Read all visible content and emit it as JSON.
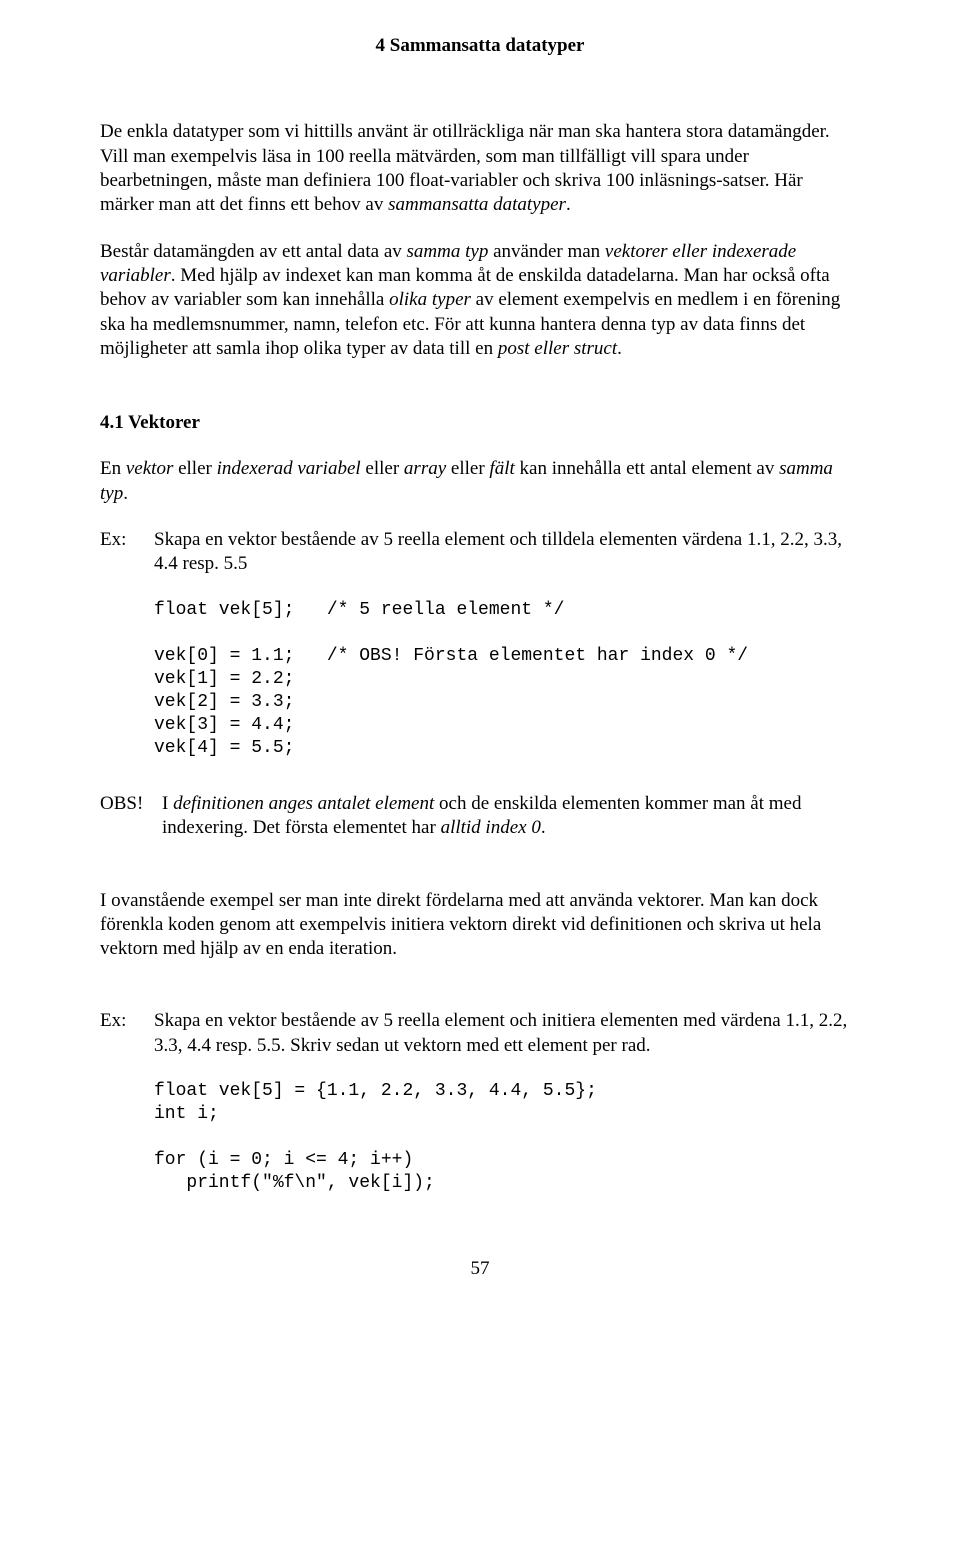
{
  "chapter_title": "4 Sammansatta datatyper",
  "para1_a": "De enkla datatyper som vi hittills använt är otillräckliga när man ska hantera stora datamängder. Vill man exempelvis läsa in 100 reella mätvärden, som man tillfälligt vill spara under bearbetningen, måste man definiera 100 float-variabler och skriva 100 inläsnings-satser. Här märker man att det finns ett behov av ",
  "para1_b_italic": "sammansatta datatyper",
  "para1_c": ".",
  "para2_a": "Består datamängden av ett antal data av ",
  "para2_b_italic": "samma typ",
  "para2_c": " använder man ",
  "para2_d_italic": "vektorer eller indexerade variabler",
  "para2_e": ". Med hjälp av indexet kan man komma åt de enskilda datadelarna. Man har också ofta behov av variabler som kan innehålla ",
  "para2_f_italic": "olika typer",
  "para2_g": " av element exempelvis en medlem i en förening ska ha medlemsnummer, namn, telefon etc. För att kunna hantera denna typ av data finns det möjligheter att samla ihop olika typer av data till en ",
  "para2_h_italic": "post eller struct",
  "para2_i": ".",
  "section_4_1": "4.1 Vektorer",
  "para3_a": "En ",
  "para3_b_italic": "vektor",
  "para3_c": " eller ",
  "para3_d_italic": "indexerad variabel",
  "para3_e": " eller ",
  "para3_f_italic": "array",
  "para3_g": " eller ",
  "para3_h_italic": "fält",
  "para3_i": " kan innehålla ett antal element av ",
  "para3_j_italic": "samma typ",
  "para3_k": ".",
  "ex_label": "Ex:",
  "ex1_body": "Skapa en vektor bestående av 5 reella element och tilldela elementen värdena 1.1, 2.2, 3.3, 4.4 resp. 5.5",
  "code1": "float vek[5];   /* 5 reella element */\n\nvek[0] = 1.1;   /* OBS! Första elementet har index 0 */\nvek[1] = 2.2;\nvek[2] = 3.3;\nvek[3] = 4.4;\nvek[4] = 5.5;",
  "obs_label": "OBS!",
  "obs_a": "I ",
  "obs_b_italic": "definitionen anges antalet element",
  "obs_c": " och de enskilda elementen kommer man åt med indexering. Det första elementet har ",
  "obs_d_italic": "alltid index 0",
  "obs_e": ".",
  "para4": "I ovanstående exempel ser man inte direkt fördelarna med att använda vektorer. Man kan dock förenkla koden genom att exempelvis initiera vektorn direkt vid definitionen och skriva ut hela vektorn med hjälp av en enda iteration.",
  "ex2_body": "Skapa en vektor bestående av 5 reella element och initiera elementen med värdena 1.1, 2.2, 3.3, 4.4 resp. 5.5. Skriv sedan ut vektorn med ett element per rad.",
  "code2": "float vek[5] = {1.1, 2.2, 3.3, 4.4, 5.5};\nint i;\n\nfor (i = 0; i <= 4; i++)\n   printf(\"%f\\n\", vek[i]);",
  "page_number": "57"
}
